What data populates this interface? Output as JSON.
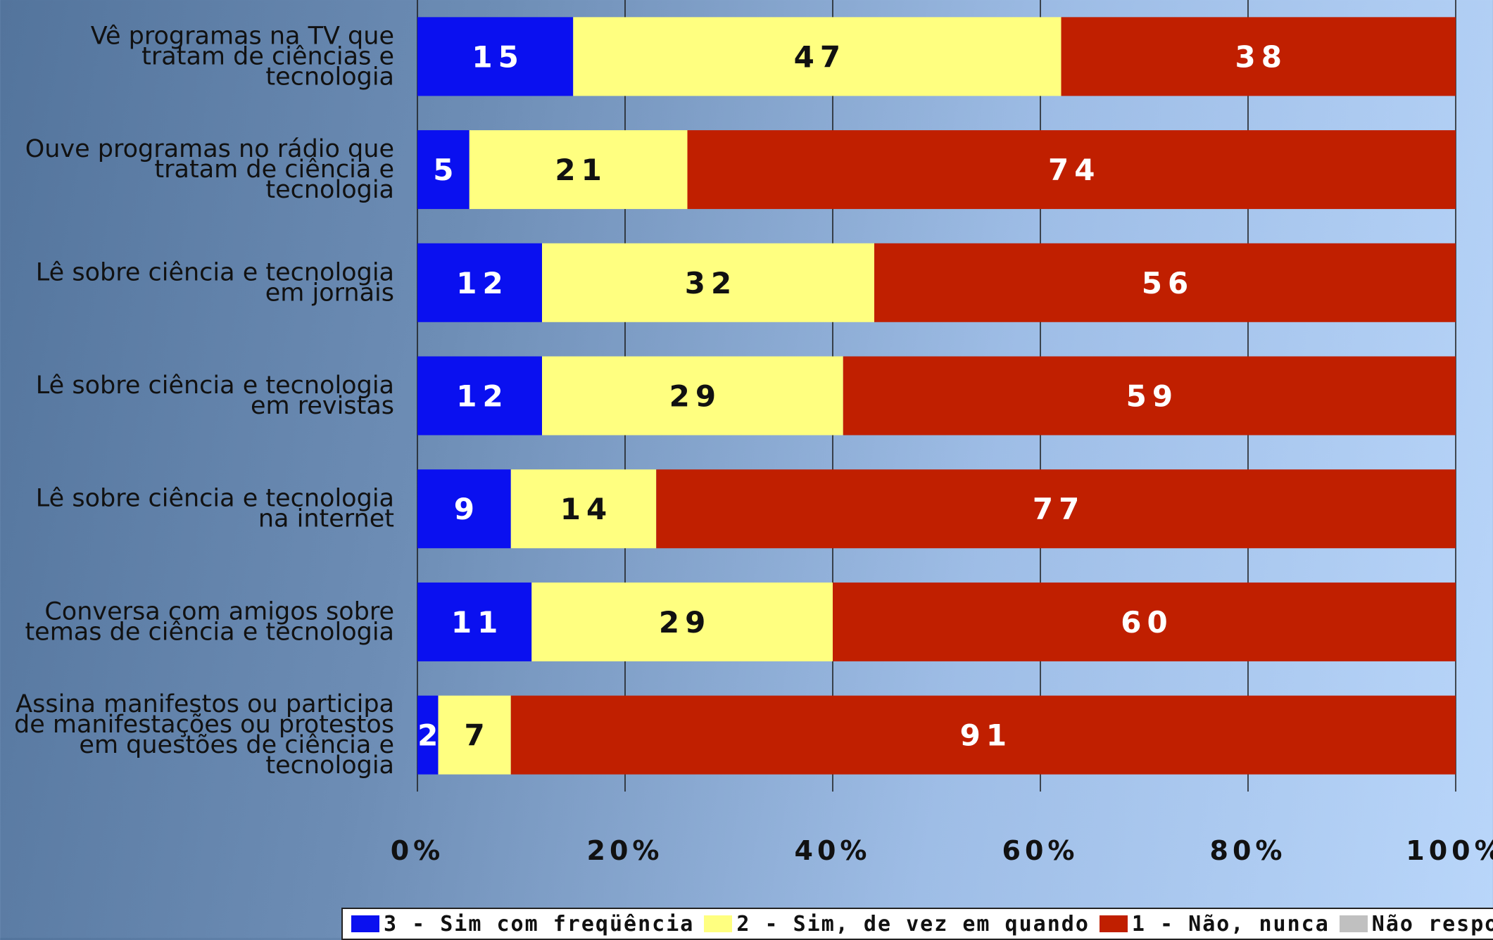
{
  "chart_data": {
    "type": "bar",
    "orientation": "horizontal",
    "stacked": true,
    "categories": [
      [
        "Vê programas na TV que",
        "tratam de ciências e",
        "tecnologia"
      ],
      [
        "Ouve programas no rádio que",
        "tratam de ciência e",
        "tecnologia"
      ],
      [
        "Lê sobre ciência e tecnologia",
        "em jornais"
      ],
      [
        "Lê sobre ciência e tecnologia",
        "em revistas"
      ],
      [
        "Lê sobre ciência e tecnologia",
        "na internet"
      ],
      [
        "Conversa com amigos sobre",
        "temas de ciência e tecnologia"
      ],
      [
        "Assina manifestos ou participa",
        "de manifestações ou protestos",
        "em questões de ciência e",
        "tecnologia"
      ]
    ],
    "series": [
      {
        "name": "3 - Sim com freqüência",
        "color": "#0a10f0",
        "label_color": "#ffffff",
        "values": [
          15,
          5,
          12,
          12,
          9,
          11,
          2
        ]
      },
      {
        "name": "2 - Sim, de vez em quando",
        "color": "#ffff80",
        "label_color": "#111111",
        "values": [
          47,
          21,
          32,
          29,
          14,
          29,
          7
        ]
      },
      {
        "name": "1 - Não, nunca",
        "color": "#c01f00",
        "label_color": "#ffffff",
        "values": [
          38,
          74,
          56,
          59,
          77,
          60,
          91
        ]
      },
      {
        "name": "Não respondeu",
        "color": "#c0c0c0",
        "label_color": "#111111",
        "values": [
          0,
          0,
          0,
          0,
          0,
          0,
          0
        ]
      }
    ],
    "xlim": [
      0,
      100
    ],
    "x_ticks": [
      "0%",
      "20%",
      "40%",
      "60%",
      "80%",
      "100%"
    ],
    "grid": true,
    "legend_position": "bottom"
  }
}
